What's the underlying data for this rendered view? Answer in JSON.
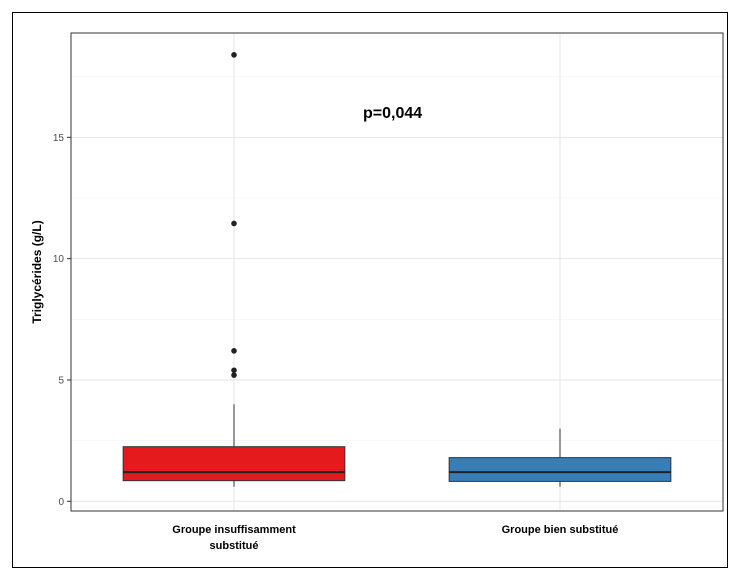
{
  "chart_data": {
    "type": "box",
    "ylabel": "Triglycérides (g/L)",
    "xlabel": "",
    "ylim": [
      -0.4,
      19.3
    ],
    "yticks": [
      0,
      5,
      10,
      15
    ],
    "grid": true,
    "annotation": "p=0,044",
    "categories": [
      {
        "label_lines": [
          "Groupe insuffisamment",
          "substitué"
        ],
        "color": "#e41a1c",
        "whisker_low": 0.6,
        "q1": 0.85,
        "median": 1.2,
        "q3": 2.25,
        "whisker_high": 4.0,
        "outliers": [
          18.4,
          11.45,
          6.2,
          5.4,
          5.2
        ]
      },
      {
        "label_lines": [
          "Groupe  bien substitué"
        ],
        "color": "#377eb8",
        "whisker_low": 0.6,
        "q1": 0.82,
        "median": 1.2,
        "q3": 1.8,
        "whisker_high": 3.0,
        "outliers": []
      }
    ]
  }
}
